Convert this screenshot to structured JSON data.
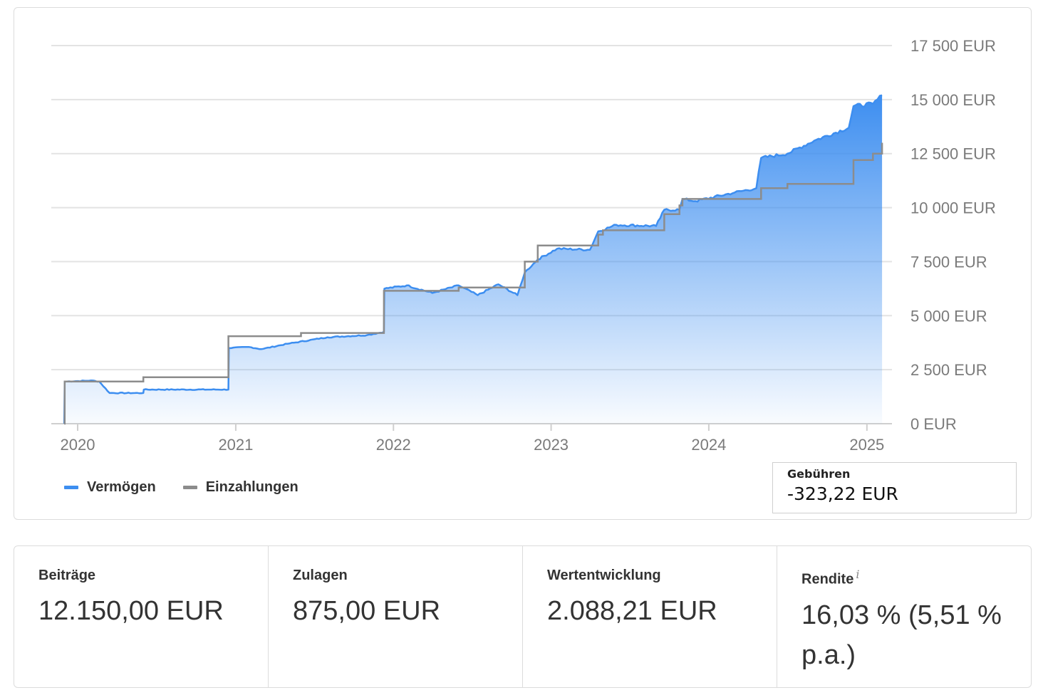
{
  "colors": {
    "vermoegen": "#3d8ef0",
    "einzahlungen": "#8c8c8c",
    "grid": "#e3e3e3",
    "axis_text": "#7a7a7a"
  },
  "legend": {
    "vermoegen": "Vermögen",
    "einzahlungen": "Einzahlungen"
  },
  "fees": {
    "label": "Gebühren",
    "value": "-323,22 EUR"
  },
  "stats": {
    "beitraege": {
      "label": "Beiträge",
      "value": "12.150,00 EUR"
    },
    "zulagen": {
      "label": "Zulagen",
      "value": "875,00 EUR"
    },
    "wertentwicklung": {
      "label": "Wertentwicklung",
      "value": "2.088,21 EUR"
    },
    "rendite": {
      "label": "Rendite",
      "info_icon": "i",
      "value": "16,03 % (5,51 % p.a.)"
    }
  },
  "chart_data": {
    "type": "area",
    "ylim": [
      0,
      17500
    ],
    "yticks": [
      0,
      2500,
      5000,
      7500,
      10000,
      12500,
      15000,
      17500
    ],
    "ytick_labels": [
      "0 EUR",
      "2 500 EUR",
      "5 000 EUR",
      "7 500 EUR",
      "10 000 EUR",
      "12 500 EUR",
      "15 000 EUR",
      "17 500 EUR"
    ],
    "xlim": [
      "2019-11-01",
      "2025-02-28"
    ],
    "xticks": [
      "2020-01-01",
      "2021-01-01",
      "2022-01-01",
      "2023-01-01",
      "2024-01-01",
      "2025-01-01"
    ],
    "xtick_labels": [
      "2020",
      "2021",
      "2022",
      "2023",
      "2024",
      "2025"
    ],
    "grid": true,
    "legend_position": "bottom-left",
    "series": [
      {
        "name": "Vermögen",
        "kind": "area",
        "points": [
          [
            "2019-12-01",
            0
          ],
          [
            "2019-12-02",
            1950
          ],
          [
            "2020-02-01",
            2000
          ],
          [
            "2020-02-20",
            1950
          ],
          [
            "2020-03-15",
            1420
          ],
          [
            "2020-06-01",
            1420
          ],
          [
            "2020-06-02",
            1580
          ],
          [
            "2020-12-15",
            1580
          ],
          [
            "2020-12-16",
            3500
          ],
          [
            "2021-02-01",
            3550
          ],
          [
            "2021-03-01",
            3450
          ],
          [
            "2021-05-01",
            3700
          ],
          [
            "2021-08-01",
            4000
          ],
          [
            "2021-11-01",
            4100
          ],
          [
            "2021-12-10",
            4250
          ],
          [
            "2021-12-11",
            6250
          ],
          [
            "2022-02-01",
            6400
          ],
          [
            "2022-04-01",
            6050
          ],
          [
            "2022-06-01",
            6400
          ],
          [
            "2022-07-15",
            5950
          ],
          [
            "2022-09-01",
            6450
          ],
          [
            "2022-10-15",
            5950
          ],
          [
            "2022-11-01",
            7000
          ],
          [
            "2022-12-01",
            7600
          ],
          [
            "2023-01-15",
            8100
          ],
          [
            "2023-04-01",
            8050
          ],
          [
            "2023-04-20",
            8900
          ],
          [
            "2023-06-01",
            9200
          ],
          [
            "2023-09-01",
            9150
          ],
          [
            "2023-09-20",
            9900
          ],
          [
            "2023-10-25",
            9900
          ],
          [
            "2023-11-01",
            10400
          ],
          [
            "2023-12-01",
            10300
          ],
          [
            "2024-03-01",
            10700
          ],
          [
            "2024-04-20",
            10900
          ],
          [
            "2024-05-01",
            12300
          ],
          [
            "2024-07-01",
            12500
          ],
          [
            "2024-09-01",
            13100
          ],
          [
            "2024-11-20",
            13700
          ],
          [
            "2024-12-01",
            14700
          ],
          [
            "2025-01-15",
            14800
          ],
          [
            "2025-02-05",
            15200
          ]
        ]
      },
      {
        "name": "Einzahlungen",
        "kind": "step",
        "points": [
          [
            "2019-12-01",
            0
          ],
          [
            "2019-12-02",
            1950
          ],
          [
            "2020-06-01",
            2150
          ],
          [
            "2020-12-15",
            4050
          ],
          [
            "2021-06-01",
            4200
          ],
          [
            "2021-12-10",
            6150
          ],
          [
            "2022-06-01",
            6300
          ],
          [
            "2022-11-01",
            7500
          ],
          [
            "2022-12-01",
            8250
          ],
          [
            "2023-04-20",
            8750
          ],
          [
            "2023-05-01",
            8950
          ],
          [
            "2023-09-20",
            9700
          ],
          [
            "2023-10-25",
            10100
          ],
          [
            "2023-11-01",
            10400
          ],
          [
            "2024-05-01",
            10900
          ],
          [
            "2024-07-01",
            11100
          ],
          [
            "2024-12-01",
            12200
          ],
          [
            "2025-01-15",
            12500
          ],
          [
            "2025-02-05",
            13000
          ]
        ]
      }
    ]
  }
}
